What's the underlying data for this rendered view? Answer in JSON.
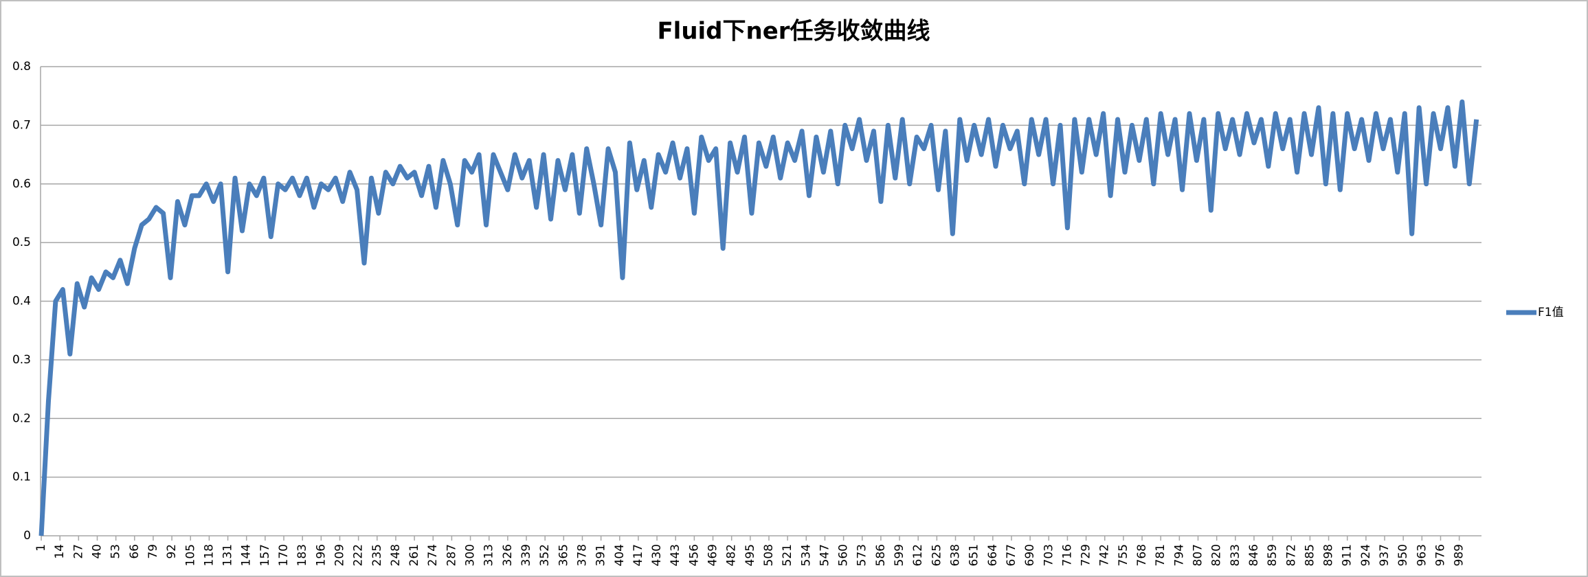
{
  "chart_data": {
    "type": "line",
    "title": "Fluid下ner任务收敛曲线",
    "x": [
      1,
      6,
      11,
      16,
      21,
      26,
      31,
      36,
      41,
      46,
      51,
      56,
      61,
      66,
      71,
      76,
      81,
      86,
      91,
      96,
      101,
      106,
      111,
      116,
      121,
      126,
      131,
      136,
      141,
      146,
      151,
      156,
      161,
      166,
      171,
      176,
      181,
      186,
      191,
      196,
      201,
      206,
      211,
      216,
      221,
      226,
      231,
      236,
      241,
      246,
      251,
      256,
      261,
      266,
      271,
      276,
      281,
      286,
      291,
      296,
      301,
      306,
      311,
      316,
      321,
      326,
      331,
      336,
      341,
      346,
      351,
      356,
      361,
      366,
      371,
      376,
      381,
      386,
      391,
      396,
      401,
      406,
      411,
      416,
      421,
      426,
      431,
      436,
      441,
      446,
      451,
      456,
      461,
      466,
      471,
      476,
      481,
      486,
      491,
      496,
      501,
      506,
      511,
      516,
      521,
      526,
      531,
      536,
      541,
      546,
      551,
      556,
      561,
      566,
      571,
      576,
      581,
      586,
      591,
      596,
      601,
      606,
      611,
      616,
      621,
      626,
      631,
      636,
      641,
      646,
      651,
      656,
      661,
      666,
      671,
      676,
      681,
      686,
      691,
      696,
      701,
      706,
      711,
      716,
      721,
      726,
      731,
      736,
      741,
      746,
      751,
      756,
      761,
      766,
      771,
      776,
      781,
      786,
      791,
      796,
      801,
      806,
      811,
      816,
      821,
      826,
      831,
      836,
      841,
      846,
      851,
      856,
      861,
      866,
      871,
      876,
      881,
      886,
      891,
      896,
      901,
      906,
      911,
      916,
      921,
      926,
      931,
      936,
      941,
      946,
      951,
      956,
      961,
      966,
      971,
      976,
      981,
      986,
      991,
      996,
      1001
    ],
    "series": [
      {
        "name": "F1值",
        "color": "#4a7ebb",
        "values": [
          0,
          0.23,
          0.4,
          0.42,
          0.31,
          0.43,
          0.39,
          0.44,
          0.42,
          0.45,
          0.44,
          0.47,
          0.43,
          0.49,
          0.53,
          0.54,
          0.56,
          0.55,
          0.44,
          0.57,
          0.53,
          0.58,
          0.58,
          0.6,
          0.57,
          0.6,
          0.45,
          0.61,
          0.52,
          0.6,
          0.58,
          0.61,
          0.51,
          0.6,
          0.59,
          0.61,
          0.58,
          0.61,
          0.56,
          0.6,
          0.59,
          0.61,
          0.57,
          0.62,
          0.59,
          0.465,
          0.61,
          0.55,
          0.62,
          0.6,
          0.63,
          0.61,
          0.62,
          0.58,
          0.63,
          0.56,
          0.64,
          0.6,
          0.53,
          0.64,
          0.62,
          0.65,
          0.53,
          0.65,
          0.62,
          0.59,
          0.65,
          0.61,
          0.64,
          0.56,
          0.65,
          0.54,
          0.64,
          0.59,
          0.65,
          0.55,
          0.66,
          0.6,
          0.53,
          0.66,
          0.62,
          0.44,
          0.67,
          0.59,
          0.64,
          0.56,
          0.65,
          0.62,
          0.67,
          0.61,
          0.66,
          0.55,
          0.68,
          0.64,
          0.66,
          0.49,
          0.67,
          0.62,
          0.68,
          0.55,
          0.67,
          0.63,
          0.68,
          0.61,
          0.67,
          0.64,
          0.69,
          0.58,
          0.68,
          0.62,
          0.69,
          0.6,
          0.7,
          0.66,
          0.71,
          0.64,
          0.69,
          0.57,
          0.7,
          0.61,
          0.71,
          0.6,
          0.68,
          0.66,
          0.7,
          0.59,
          0.69,
          0.515,
          0.71,
          0.64,
          0.7,
          0.65,
          0.71,
          0.63,
          0.7,
          0.66,
          0.69,
          0.6,
          0.71,
          0.65,
          0.71,
          0.6,
          0.7,
          0.525,
          0.71,
          0.62,
          0.71,
          0.65,
          0.72,
          0.58,
          0.71,
          0.62,
          0.7,
          0.64,
          0.71,
          0.6,
          0.72,
          0.65,
          0.71,
          0.59,
          0.72,
          0.64,
          0.71,
          0.555,
          0.72,
          0.66,
          0.71,
          0.65,
          0.72,
          0.67,
          0.71,
          0.63,
          0.72,
          0.66,
          0.71,
          0.62,
          0.72,
          0.65,
          0.73,
          0.6,
          0.72,
          0.59,
          0.72,
          0.66,
          0.71,
          0.64,
          0.72,
          0.66,
          0.71,
          0.62,
          0.72,
          0.515,
          0.73,
          0.6,
          0.72,
          0.66,
          0.73,
          0.63,
          0.74,
          0.6,
          0.71
        ]
      }
    ],
    "xlim": [
      0.5,
      1004.5
    ],
    "xticks": [
      1,
      14,
      27,
      40,
      53,
      66,
      79,
      92,
      105,
      118,
      131,
      144,
      157,
      170,
      183,
      196,
      209,
      222,
      235,
      248,
      261,
      274,
      287,
      300,
      313,
      326,
      339,
      352,
      365,
      378,
      391,
      404,
      417,
      430,
      443,
      456,
      469,
      482,
      495,
      508,
      521,
      534,
      547,
      560,
      573,
      586,
      599,
      612,
      625,
      638,
      651,
      664,
      677,
      690,
      703,
      716,
      729,
      742,
      755,
      768,
      781,
      794,
      807,
      820,
      833,
      846,
      859,
      872,
      885,
      898,
      911,
      924,
      937,
      950,
      963,
      976,
      989
    ],
    "ylim": [
      0,
      0.8
    ],
    "yticks": [
      0,
      0.1,
      0.2,
      0.3,
      0.4,
      0.5,
      0.6,
      0.7,
      0.8
    ],
    "grid": true,
    "legend": "right"
  }
}
